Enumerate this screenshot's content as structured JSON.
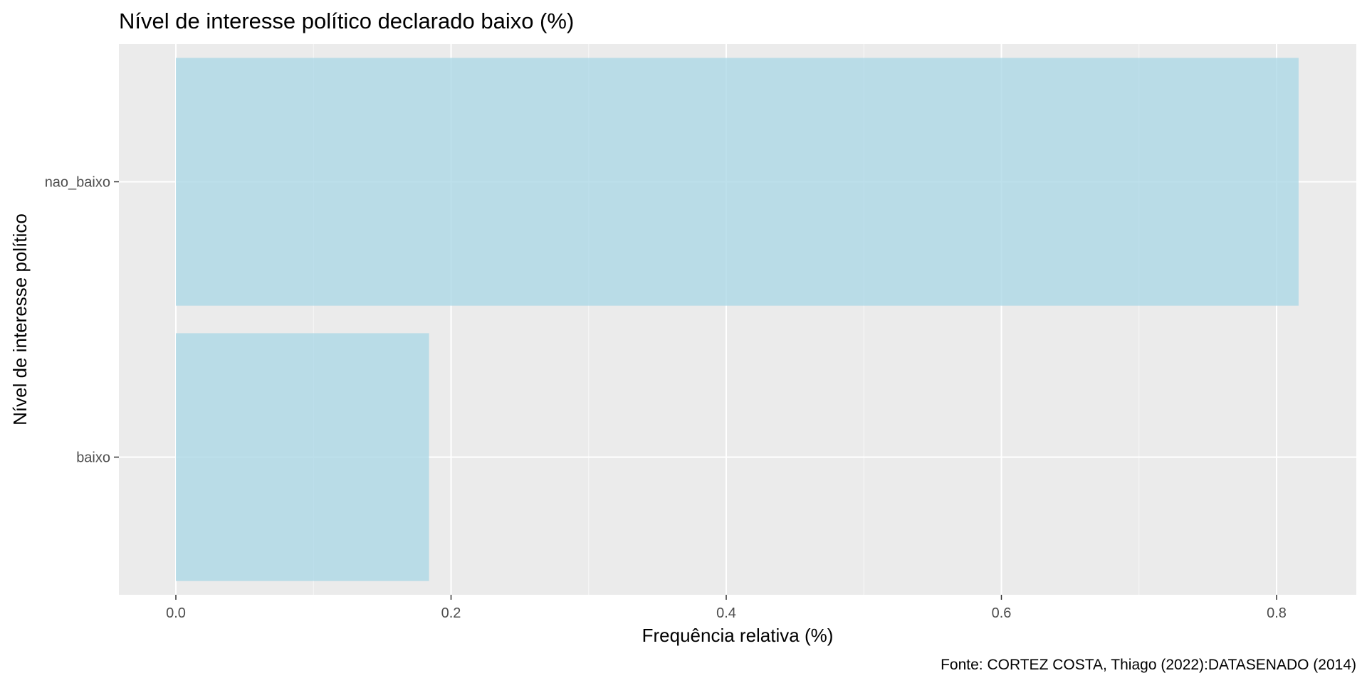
{
  "chart_data": {
    "type": "bar",
    "orientation": "horizontal",
    "title": "Nível de interesse político declarado baixo (%)",
    "xlabel": "Frequência relativa (%)",
    "ylabel": "Nível de interesse político",
    "caption": "Fonte: CORTEZ COSTA, Thiago (2022):DATASENADO (2014)",
    "categories": [
      "baixo",
      "nao_baixo"
    ],
    "values": [
      0.184,
      0.816
    ],
    "xlim": [
      -0.1,
      2.14
    ],
    "xticks": [
      {
        "value": 0.0,
        "label": "0.0"
      },
      {
        "value": 0.2,
        "label": "0.2"
      },
      {
        "value": 0.4,
        "label": "0.4"
      },
      {
        "value": 0.6,
        "label": "0.6"
      },
      {
        "value": 0.8,
        "label": "0.8"
      }
    ],
    "grid": true,
    "legend": "none",
    "colors": {
      "bar": "#add8e6",
      "panel_background": "#ebebeb",
      "grid_major": "#ffffff",
      "grid_minor": "#f7f7f7",
      "tick": "#333333"
    }
  }
}
